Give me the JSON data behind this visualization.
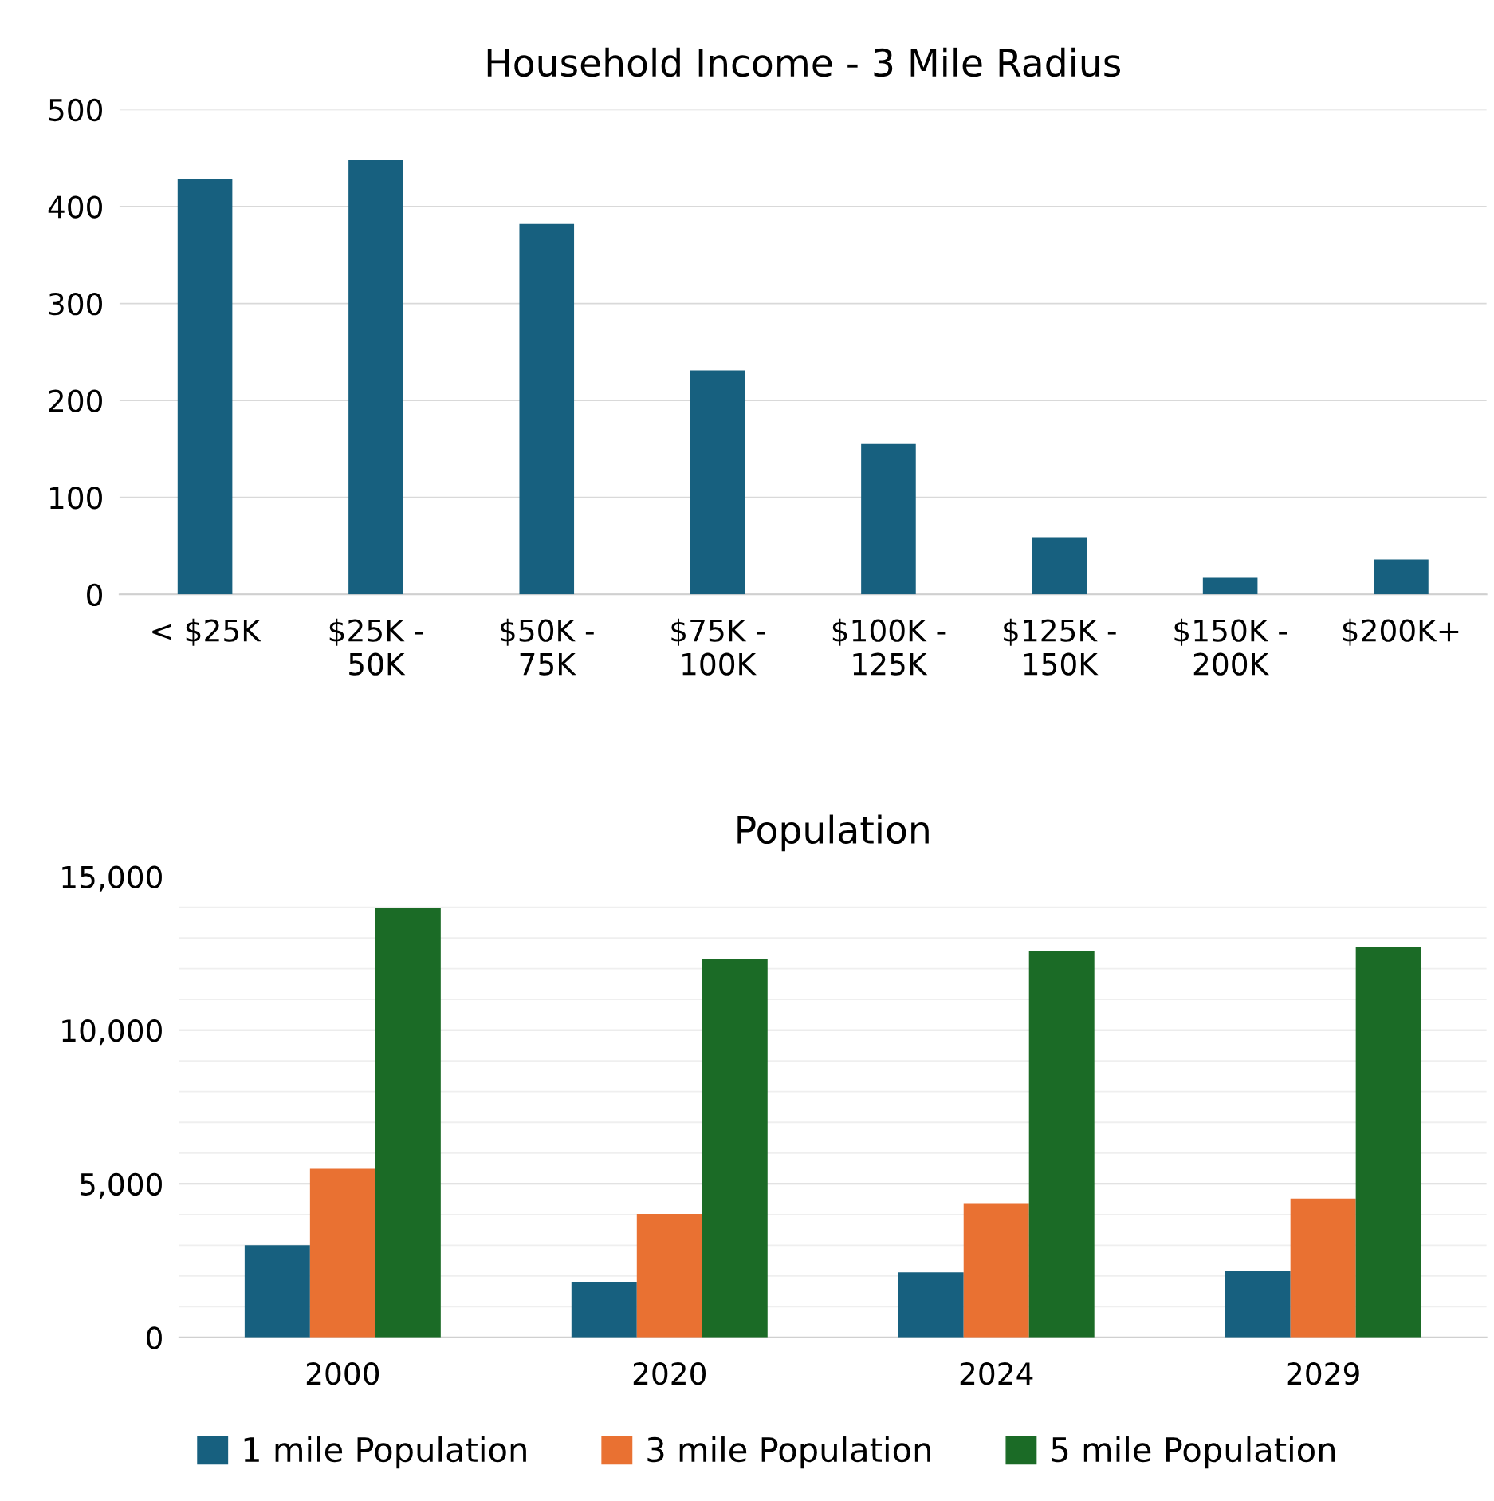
{
  "chart_data": [
    {
      "type": "bar",
      "title": "Household Income - 3 Mile Radius",
      "categories": [
        "< $25K",
        "$25K -\n50K",
        "$50K -\n75K",
        "$75K -\n100K",
        "$100K -\n125K",
        "$125K -\n150K",
        "$150K -\n200K",
        "$200K+"
      ],
      "series": [
        {
          "color": "#17607f",
          "values": [
            428,
            448,
            382,
            231,
            155,
            59,
            17,
            36
          ]
        }
      ],
      "ylim": [
        0,
        500
      ],
      "yticks": [
        0,
        100,
        200,
        300,
        400,
        500
      ],
      "grid": "y",
      "legend": false
    },
    {
      "type": "bar",
      "title": "Population",
      "categories": [
        "2000",
        "2020",
        "2024",
        "2029"
      ],
      "series": [
        {
          "name": "1 mile Population",
          "color": "#17607f",
          "values": [
            3000,
            1810,
            2120,
            2180
          ]
        },
        {
          "name": "3 mile Population",
          "color": "#e97132",
          "values": [
            5490,
            4020,
            4370,
            4520
          ]
        },
        {
          "name": "5 mile Population",
          "color": "#1b6b26",
          "values": [
            13970,
            12320,
            12570,
            12720
          ]
        }
      ],
      "ylim": [
        0,
        15000
      ],
      "yticks": [
        {
          "value": 0,
          "label": "0"
        },
        {
          "value": 1000,
          "label": null
        },
        {
          "value": 2000,
          "label": null
        },
        {
          "value": 3000,
          "label": null
        },
        {
          "value": 4000,
          "label": null
        },
        {
          "value": 5000,
          "label": "5,000"
        },
        {
          "value": 6000,
          "label": null
        },
        {
          "value": 7000,
          "label": null
        },
        {
          "value": 8000,
          "label": null
        },
        {
          "value": 9000,
          "label": null
        },
        {
          "value": 10000,
          "label": "10,000"
        },
        {
          "value": 11000,
          "label": null
        },
        {
          "value": 12000,
          "label": null
        },
        {
          "value": 13000,
          "label": null
        },
        {
          "value": 14000,
          "label": null
        },
        {
          "value": 15000,
          "label": "15,000"
        }
      ],
      "grid": "y",
      "legend": "bottom"
    }
  ]
}
